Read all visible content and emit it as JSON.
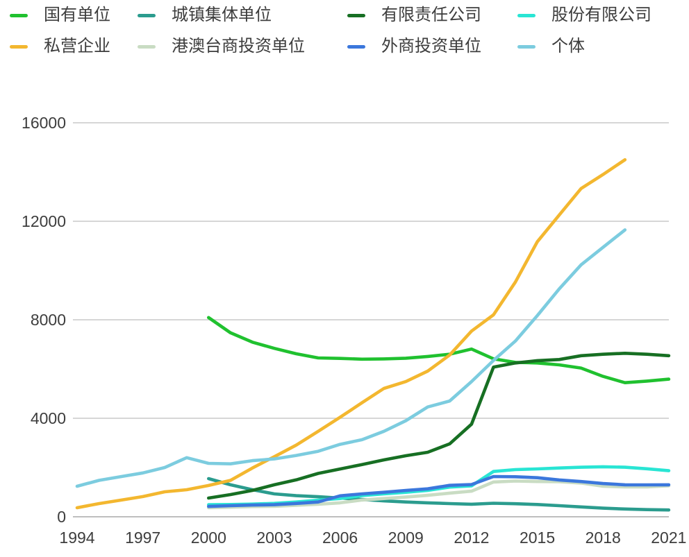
{
  "legend": {
    "items": [
      {
        "label": "国有单位",
        "color": "#20c12f"
      },
      {
        "label": "城镇集体单位",
        "color": "#2b9c8e"
      },
      {
        "label": "有限责任公司",
        "color": "#176f23"
      },
      {
        "label": "股份有限公司",
        "color": "#29e5d4"
      },
      {
        "label": "私营企业",
        "color": "#f3b72f"
      },
      {
        "label": "港澳台商投资单位",
        "color": "#c9dcc3"
      },
      {
        "label": "外商投资单位",
        "color": "#3b77dc"
      },
      {
        "label": "个体",
        "color": "#7cccdf"
      }
    ]
  },
  "colors": {
    "background": "#ffffff",
    "axis_text": "#3d3d3d",
    "gridline": "#c9c9c9",
    "zero_line": "#a8a8a8"
  },
  "chart_data": {
    "type": "line",
    "title": "",
    "xlabel": "",
    "ylabel": "",
    "xlim": [
      1994,
      2021
    ],
    "ylim": [
      0,
      16000
    ],
    "x_ticks": [
      1994,
      1997,
      2000,
      2003,
      2006,
      2009,
      2012,
      2015,
      2018,
      2021
    ],
    "y_ticks": [
      0,
      4000,
      8000,
      12000,
      16000
    ],
    "grid": "horizontal",
    "legend_position": "top",
    "series": [
      {
        "name": "国有单位",
        "color": "#20c12f",
        "years": [
          2000,
          2001,
          2002,
          2003,
          2004,
          2005,
          2006,
          2007,
          2008,
          2009,
          2010,
          2011,
          2012,
          2013,
          2014,
          2015,
          2016,
          2017,
          2018,
          2019,
          2020,
          2021
        ],
        "values": [
          8090,
          7470,
          7090,
          6840,
          6620,
          6450,
          6430,
          6400,
          6410,
          6440,
          6510,
          6600,
          6810,
          6415,
          6270,
          6245,
          6170,
          6040,
          5700,
          5445,
          5510,
          5590
        ]
      },
      {
        "name": "城镇集体单位",
        "color": "#2b9c8e",
        "years": [
          2000,
          2001,
          2002,
          2003,
          2004,
          2005,
          2006,
          2007,
          2008,
          2009,
          2010,
          2011,
          2012,
          2013,
          2014,
          2015,
          2016,
          2017,
          2018,
          2019,
          2020,
          2021
        ],
        "values": [
          1550,
          1300,
          1100,
          930,
          855,
          815,
          760,
          700,
          645,
          600,
          565,
          535,
          510,
          550,
          530,
          500,
          450,
          400,
          350,
          315,
          290,
          275
        ]
      },
      {
        "name": "有限责任公司",
        "color": "#176f23",
        "years": [
          2000,
          2001,
          2002,
          2003,
          2004,
          2005,
          2006,
          2007,
          2008,
          2009,
          2010,
          2011,
          2012,
          2013,
          2014,
          2015,
          2016,
          2017,
          2018,
          2019,
          2020,
          2021
        ],
        "values": [
          760,
          900,
          1070,
          1300,
          1500,
          1760,
          1940,
          2120,
          2310,
          2480,
          2620,
          2960,
          3760,
          6075,
          6245,
          6340,
          6385,
          6540,
          6600,
          6640,
          6600,
          6540
        ]
      },
      {
        "name": "股份有限公司",
        "color": "#29e5d4",
        "years": [
          2000,
          2001,
          2002,
          2003,
          2004,
          2005,
          2006,
          2007,
          2008,
          2009,
          2010,
          2011,
          2012,
          2013,
          2014,
          2015,
          2016,
          2017,
          2018,
          2019,
          2020,
          2021
        ],
        "values": [
          490,
          500,
          515,
          545,
          600,
          675,
          740,
          860,
          930,
          995,
          1070,
          1205,
          1255,
          1840,
          1915,
          1945,
          1980,
          2010,
          2030,
          2010,
          1950,
          1870
        ]
      },
      {
        "name": "私营企业",
        "color": "#f3b72f",
        "years": [
          1994,
          1995,
          1996,
          1997,
          1998,
          1999,
          2000,
          2001,
          2002,
          2003,
          2004,
          2005,
          2006,
          2007,
          2008,
          2009,
          2010,
          2011,
          2012,
          2013,
          2014,
          2015,
          2016,
          2017,
          2018,
          2019
        ],
        "values": [
          365,
          535,
          675,
          820,
          1015,
          1100,
          1270,
          1480,
          1980,
          2440,
          2910,
          3470,
          4040,
          4630,
          5210,
          5490,
          5915,
          6570,
          7540,
          8200,
          9530,
          11170,
          12250,
          13330,
          13900,
          14500
        ]
      },
      {
        "name": "港澳台商投资单位",
        "color": "#c9dcc3",
        "years": [
          2000,
          2001,
          2002,
          2003,
          2004,
          2005,
          2006,
          2007,
          2008,
          2009,
          2010,
          2011,
          2012,
          2013,
          2014,
          2015,
          2016,
          2017,
          2018,
          2019,
          2020,
          2021
        ],
        "values": [
          365,
          390,
          415,
          425,
          465,
          510,
          565,
          680,
          740,
          800,
          870,
          960,
          1040,
          1410,
          1450,
          1430,
          1425,
          1370,
          1240,
          1210,
          1215,
          1260
        ]
      },
      {
        "name": "外商投资单位",
        "color": "#3b77dc",
        "years": [
          2000,
          2001,
          2002,
          2003,
          2004,
          2005,
          2006,
          2007,
          2008,
          2009,
          2010,
          2011,
          2012,
          2013,
          2014,
          2015,
          2016,
          2017,
          2018,
          2019,
          2020,
          2021
        ],
        "values": [
          420,
          450,
          475,
          490,
          540,
          600,
          850,
          930,
          995,
          1070,
          1135,
          1275,
          1310,
          1635,
          1625,
          1585,
          1495,
          1430,
          1350,
          1300,
          1295,
          1300
        ]
      },
      {
        "name": "个体",
        "color": "#7cccdf",
        "years": [
          1994,
          1995,
          1996,
          1997,
          1998,
          1999,
          2000,
          2001,
          2002,
          2003,
          2004,
          2005,
          2006,
          2007,
          2008,
          2009,
          2010,
          2011,
          2012,
          2013,
          2014,
          2015,
          2016,
          2017,
          2018,
          2019
        ],
        "values": [
          1240,
          1480,
          1630,
          1780,
          2000,
          2400,
          2170,
          2150,
          2280,
          2350,
          2490,
          2660,
          2940,
          3130,
          3470,
          3900,
          4460,
          4700,
          5490,
          6350,
          7135,
          8170,
          9250,
          10230,
          10940,
          11650
        ]
      }
    ]
  }
}
